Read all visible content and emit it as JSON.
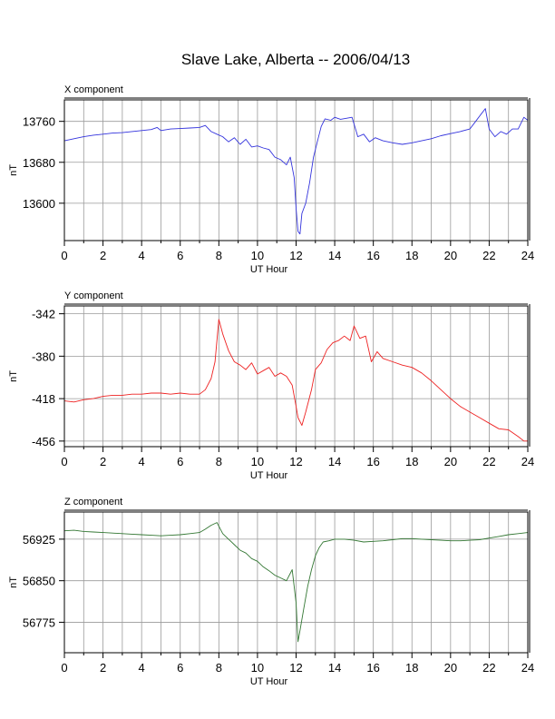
{
  "title": "Slave Lake, Alberta -- 2006/04/13",
  "chart_data": [
    {
      "type": "line",
      "component_label": "X component",
      "xlabel": "UT Hour",
      "ylabel": "nT",
      "xlim": [
        0,
        24
      ],
      "ylim": [
        13527,
        13802
      ],
      "xticks": [
        0,
        2,
        4,
        6,
        8,
        10,
        12,
        14,
        16,
        18,
        20,
        22,
        24
      ],
      "yticks": [
        13760,
        13680,
        13600
      ],
      "grid": true,
      "color": "#3333dd",
      "series": [
        {
          "x": [
            0,
            0.5,
            1,
            1.5,
            2,
            2.5,
            3,
            3.5,
            4,
            4.5,
            4.8,
            5,
            5.5,
            6,
            6.5,
            7,
            7.3,
            7.6,
            7.9,
            8.2,
            8.5,
            8.8,
            9.1,
            9.4,
            9.7,
            10,
            10.3,
            10.6,
            10.9,
            11.2,
            11.5,
            11.7,
            11.9,
            12,
            12.1,
            12.2,
            12.3,
            12.5,
            12.7,
            12.9,
            13.1,
            13.3,
            13.5,
            13.8,
            14,
            14.3,
            14.6,
            14.9,
            15.2,
            15.5,
            15.8,
            16.1,
            16.5,
            17,
            17.5,
            18,
            18.5,
            19,
            19.5,
            20,
            20.5,
            21,
            21.3,
            21.6,
            21.8,
            22,
            22.3,
            22.6,
            22.9,
            23.2,
            23.5,
            23.8,
            24
          ],
          "y": [
            13722,
            13726,
            13730,
            13733,
            13735,
            13737,
            13738,
            13740,
            13742,
            13744,
            13748,
            13742,
            13745,
            13746,
            13747,
            13748,
            13752,
            13740,
            13735,
            13730,
            13720,
            13728,
            13715,
            13725,
            13710,
            13712,
            13708,
            13705,
            13690,
            13685,
            13675,
            13690,
            13650,
            13590,
            13545,
            13540,
            13580,
            13600,
            13640,
            13690,
            13720,
            13750,
            13765,
            13762,
            13768,
            13764,
            13766,
            13768,
            13730,
            13735,
            13720,
            13728,
            13722,
            13718,
            13715,
            13718,
            13722,
            13726,
            13732,
            13736,
            13740,
            13745,
            13760,
            13775,
            13785,
            13745,
            13730,
            13740,
            13735,
            13745,
            13745,
            13768,
            13762
          ]
        }
      ]
    },
    {
      "type": "line",
      "component_label": "Y component",
      "xlabel": "UT Hour",
      "ylabel": "nT",
      "xlim": [
        0,
        24
      ],
      "ylim": [
        -461,
        -335
      ],
      "xticks": [
        0,
        2,
        4,
        6,
        8,
        10,
        12,
        14,
        16,
        18,
        20,
        22,
        24
      ],
      "yticks": [
        -342,
        -380,
        -418,
        -456
      ],
      "grid": true,
      "color": "#ee2222",
      "series": [
        {
          "x": [
            0,
            0.5,
            1,
            1.5,
            2,
            2.5,
            3,
            3.5,
            4,
            4.5,
            5,
            5.5,
            6,
            6.5,
            7,
            7.3,
            7.6,
            7.8,
            8,
            8.2,
            8.5,
            8.8,
            9.1,
            9.4,
            9.7,
            10,
            10.3,
            10.6,
            10.9,
            11.2,
            11.5,
            11.8,
            12,
            12.1,
            12.3,
            12.5,
            12.8,
            13,
            13.3,
            13.6,
            13.9,
            14.2,
            14.5,
            14.8,
            15,
            15.3,
            15.6,
            15.9,
            16.2,
            16.5,
            17,
            17.5,
            18,
            18.5,
            19,
            19.5,
            20,
            20.5,
            21,
            21.5,
            22,
            22.5,
            23,
            23.5,
            23.8,
            24
          ],
          "y": [
            -420,
            -421,
            -419,
            -418,
            -416,
            -415,
            -415,
            -414,
            -414,
            -413,
            -413,
            -414,
            -413,
            -414,
            -414,
            -410,
            -400,
            -385,
            -347,
            -360,
            -375,
            -385,
            -388,
            -392,
            -386,
            -396,
            -393,
            -390,
            -398,
            -395,
            -398,
            -406,
            -425,
            -435,
            -442,
            -430,
            -410,
            -392,
            -386,
            -374,
            -368,
            -366,
            -362,
            -366,
            -353,
            -364,
            -362,
            -385,
            -376,
            -382,
            -385,
            -388,
            -390,
            -395,
            -402,
            -410,
            -418,
            -425,
            -430,
            -435,
            -440,
            -445,
            -446,
            -452,
            -456,
            -456
          ]
        }
      ]
    },
    {
      "type": "line",
      "component_label": "Z component",
      "xlabel": "UT Hour",
      "ylabel": "nT",
      "xlim": [
        0,
        24
      ],
      "ylim": [
        56720,
        56974
      ],
      "xticks": [
        0,
        2,
        4,
        6,
        8,
        10,
        12,
        14,
        16,
        18,
        20,
        22,
        24
      ],
      "yticks": [
        56925,
        56850,
        56775
      ],
      "grid": true,
      "color": "#337733",
      "series": [
        {
          "x": [
            0,
            0.5,
            1,
            1.5,
            2,
            2.5,
            3,
            3.5,
            4,
            4.5,
            5,
            5.5,
            6,
            6.5,
            7,
            7.3,
            7.6,
            7.9,
            8.2,
            8.5,
            8.8,
            9.1,
            9.4,
            9.7,
            10,
            10.3,
            10.6,
            10.9,
            11.2,
            11.5,
            11.8,
            12,
            12.1,
            12.2,
            12.4,
            12.6,
            12.8,
            13,
            13.2,
            13.4,
            13.7,
            14,
            14.5,
            15,
            15.5,
            16,
            16.5,
            17,
            17.5,
            18,
            18.5,
            19,
            19.5,
            20,
            20.5,
            21,
            21.5,
            22,
            22.5,
            23,
            23.5,
            24
          ],
          "y": [
            56940,
            56941,
            56939,
            56938,
            56937,
            56936,
            56935,
            56934,
            56933,
            56932,
            56931,
            56932,
            56933,
            56935,
            56937,
            56943,
            56950,
            56955,
            56935,
            56925,
            56915,
            56905,
            56900,
            56890,
            56885,
            56875,
            56868,
            56860,
            56855,
            56850,
            56870,
            56810,
            56740,
            56760,
            56800,
            56840,
            56870,
            56895,
            56910,
            56920,
            56922,
            56925,
            56925,
            56923,
            56920,
            56921,
            56922,
            56924,
            56926,
            56926,
            56925,
            56924,
            56923,
            56922,
            56922,
            56923,
            56924,
            56927,
            56930,
            56933,
            56935,
            56937
          ]
        }
      ]
    }
  ]
}
